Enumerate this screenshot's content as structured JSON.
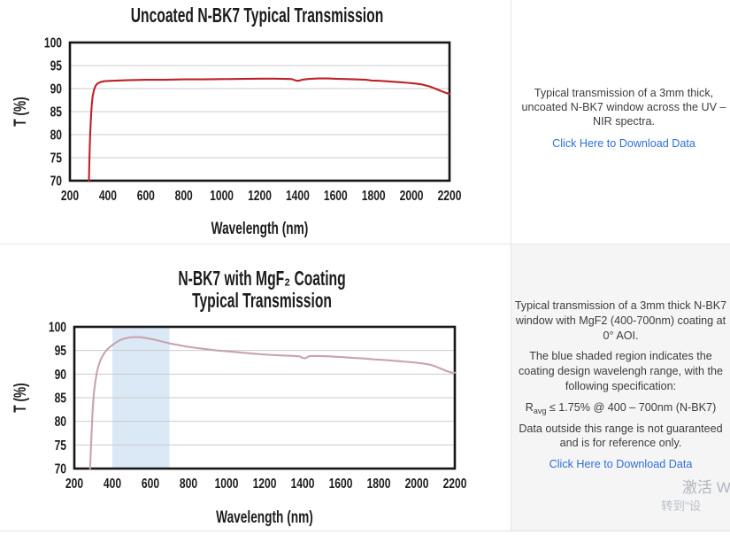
{
  "chart_data": [
    {
      "type": "line",
      "title_lines": [
        "Uncoated N-BK7 Typical Transmission"
      ],
      "xlabel": "Wavelength (nm)",
      "ylabel": "T (%)",
      "xlim": [
        200,
        2200
      ],
      "ylim": [
        70,
        100
      ],
      "x_ticks": [
        200,
        400,
        600,
        800,
        1000,
        1200,
        1400,
        1600,
        1800,
        2000,
        2200
      ],
      "y_ticks": [
        70,
        75,
        80,
        85,
        90,
        95,
        100
      ],
      "grid": "horizontal",
      "line_color": "#be2127",
      "series": [
        {
          "name": "Uncoated N-BK7",
          "points": [
            [
              300,
              70
            ],
            [
              303,
              75
            ],
            [
              306,
              79
            ],
            [
              310,
              83
            ],
            [
              315,
              86.5
            ],
            [
              320,
              88.3
            ],
            [
              327,
              89.7
            ],
            [
              335,
              90.6
            ],
            [
              345,
              91.1
            ],
            [
              360,
              91.4
            ],
            [
              380,
              91.6
            ],
            [
              420,
              91.7
            ],
            [
              500,
              91.8
            ],
            [
              600,
              91.9
            ],
            [
              700,
              91.9
            ],
            [
              800,
              92.0
            ],
            [
              900,
              92.0
            ],
            [
              1000,
              92.05
            ],
            [
              1100,
              92.1
            ],
            [
              1200,
              92.15
            ],
            [
              1280,
              92.15
            ],
            [
              1340,
              92.1
            ],
            [
              1370,
              92.05
            ],
            [
              1390,
              91.75
            ],
            [
              1405,
              91.7
            ],
            [
              1425,
              91.95
            ],
            [
              1460,
              92.1
            ],
            [
              1510,
              92.2
            ],
            [
              1560,
              92.2
            ],
            [
              1620,
              92.1
            ],
            [
              1700,
              92.0
            ],
            [
              1760,
              91.9
            ],
            [
              1790,
              91.75
            ],
            [
              1830,
              91.7
            ],
            [
              1880,
              91.55
            ],
            [
              1930,
              91.4
            ],
            [
              1980,
              91.25
            ],
            [
              2020,
              91.1
            ],
            [
              2060,
              90.85
            ],
            [
              2100,
              90.4
            ],
            [
              2130,
              89.9
            ],
            [
              2160,
              89.4
            ],
            [
              2185,
              89.0
            ],
            [
              2200,
              88.85
            ]
          ]
        }
      ]
    },
    {
      "type": "line",
      "title_lines": [
        "N-BK7 with MgF₂ Coating",
        "Typical Transmission"
      ],
      "xlabel": "Wavelength (nm)",
      "ylabel": "T (%)",
      "xlim": [
        200,
        2200
      ],
      "ylim": [
        70,
        100
      ],
      "x_ticks": [
        200,
        400,
        600,
        800,
        1000,
        1200,
        1400,
        1600,
        1800,
        2000,
        2200
      ],
      "y_ticks": [
        70,
        75,
        80,
        85,
        90,
        95,
        100
      ],
      "grid": "horizontal",
      "line_color": "#c7a4ad",
      "shaded_region": {
        "x": [
          400,
          700
        ],
        "color": "#dbe8f5"
      },
      "series": [
        {
          "name": "N-BK7 with MgF2 coating",
          "points": [
            [
              283,
              70
            ],
            [
              287,
              74
            ],
            [
              291,
              78
            ],
            [
              296,
              82
            ],
            [
              302,
              85.5
            ],
            [
              309,
              88
            ],
            [
              318,
              90.3
            ],
            [
              328,
              91.9
            ],
            [
              340,
              93.2
            ],
            [
              355,
              94.3
            ],
            [
              372,
              95.2
            ],
            [
              392,
              95.9
            ],
            [
              412,
              96.5
            ],
            [
              435,
              97.1
            ],
            [
              460,
              97.5
            ],
            [
              490,
              97.75
            ],
            [
              520,
              97.85
            ],
            [
              550,
              97.8
            ],
            [
              580,
              97.6
            ],
            [
              620,
              97.3
            ],
            [
              660,
              96.9
            ],
            [
              700,
              96.5
            ],
            [
              740,
              96.2
            ],
            [
              780,
              95.9
            ],
            [
              830,
              95.6
            ],
            [
              890,
              95.3
            ],
            [
              950,
              95.0
            ],
            [
              1010,
              94.8
            ],
            [
              1080,
              94.55
            ],
            [
              1150,
              94.3
            ],
            [
              1220,
              94.1
            ],
            [
              1290,
              93.95
            ],
            [
              1350,
              93.85
            ],
            [
              1385,
              93.75
            ],
            [
              1400,
              93.4
            ],
            [
              1415,
              93.35
            ],
            [
              1435,
              93.8
            ],
            [
              1480,
              93.85
            ],
            [
              1540,
              93.75
            ],
            [
              1600,
              93.6
            ],
            [
              1660,
              93.45
            ],
            [
              1720,
              93.3
            ],
            [
              1780,
              93.1
            ],
            [
              1840,
              92.95
            ],
            [
              1900,
              92.75
            ],
            [
              1950,
              92.6
            ],
            [
              2000,
              92.4
            ],
            [
              2040,
              92.2
            ],
            [
              2070,
              92.0
            ],
            [
              2100,
              91.6
            ],
            [
              2130,
              91.1
            ],
            [
              2160,
              90.6
            ],
            [
              2180,
              90.35
            ],
            [
              2200,
              90.3
            ]
          ]
        }
      ]
    }
  ],
  "panels": {
    "top": {
      "description_lines": [
        "Typical transmission of a 3mm thick,",
        "uncoated N-BK7 window across the UV –",
        "NIR spectra."
      ],
      "link_label": "Click Here to Download Data"
    },
    "bottom": {
      "p1_lines": [
        "Typical transmission of a 3mm thick N-BK7",
        "window with MgF2 (400-700nm) coating at",
        "0° AOI."
      ],
      "p2_lines": [
        "The blue shaded region indicates the",
        "coating design wavelengh range, with the",
        "following specification:"
      ],
      "spec": {
        "r": "R",
        "sub": "avg",
        "rest": " ≤ 1.75% @ 400 – 700nm (N-BK7)"
      },
      "p4_lines": [
        "Data outside this range is not guaranteed",
        "and is for reference only."
      ],
      "link_label": "Click Here to Download Data"
    }
  },
  "watermark": {
    "line1": "激活 W",
    "line2": "转到\"设"
  },
  "colors": {
    "accent_link": "#2e6fd6",
    "panel_gray": "#f5f5f6",
    "red_line": "#be2127",
    "pink_line": "#c7a4ad",
    "shaded_blue": "#dbe8f5"
  }
}
